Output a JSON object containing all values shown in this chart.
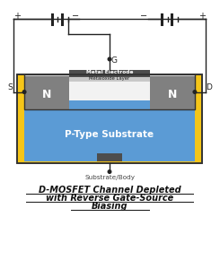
{
  "title_line1": "D-MOSFET Channel Depleted",
  "title_line2": "with Reverse Gate-Source",
  "title_line3": "Biasing",
  "substrate_label": "Substrate/Body",
  "metal_electrode_label": "Metal Electrode",
  "metaloxide_label": "Metaloxide Layer",
  "p_type_label": "P-Type Substrate",
  "n_label": "N",
  "s_label": "S",
  "d_label": "D",
  "g_label": "G",
  "bg_color": "#ffffff",
  "outer_box_color": "#333333",
  "substrate_fill": "#f5c518",
  "p_type_fill": "#5b9bd5",
  "n_region_fill": "#808080",
  "metal_electrode_fill": "#4d4d4d",
  "metaloxide_fill": "#c8c8c8",
  "body_contact_fill": "#4d4d4d",
  "wire_color": "#222222",
  "arc_color": "#d0dce8",
  "white_gap": "#f2f2f2"
}
